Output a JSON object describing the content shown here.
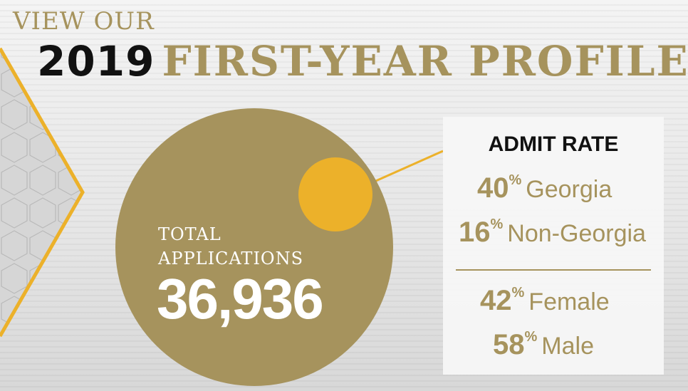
{
  "header": {
    "line1": "VIEW OUR",
    "year": "2019",
    "title": "FIRST-YEAR PROFILE"
  },
  "applications": {
    "label_line1": "TOTAL",
    "label_line2": "APPLICATIONS",
    "value": "36,936"
  },
  "admit_rate": {
    "heading": "ADMIT RATE",
    "items": [
      {
        "value": "40",
        "unit": "%",
        "label": "Georgia"
      },
      {
        "value": "16",
        "unit": "%",
        "label": "Non-Georgia"
      }
    ]
  },
  "gender": {
    "items": [
      {
        "value": "42",
        "unit": "%",
        "label": "Female"
      },
      {
        "value": "58",
        "unit": "%",
        "label": "Male"
      }
    ]
  },
  "colors": {
    "gold": "#a6935d",
    "accent_yellow": "#ecb12a",
    "text_dark": "#111111"
  }
}
